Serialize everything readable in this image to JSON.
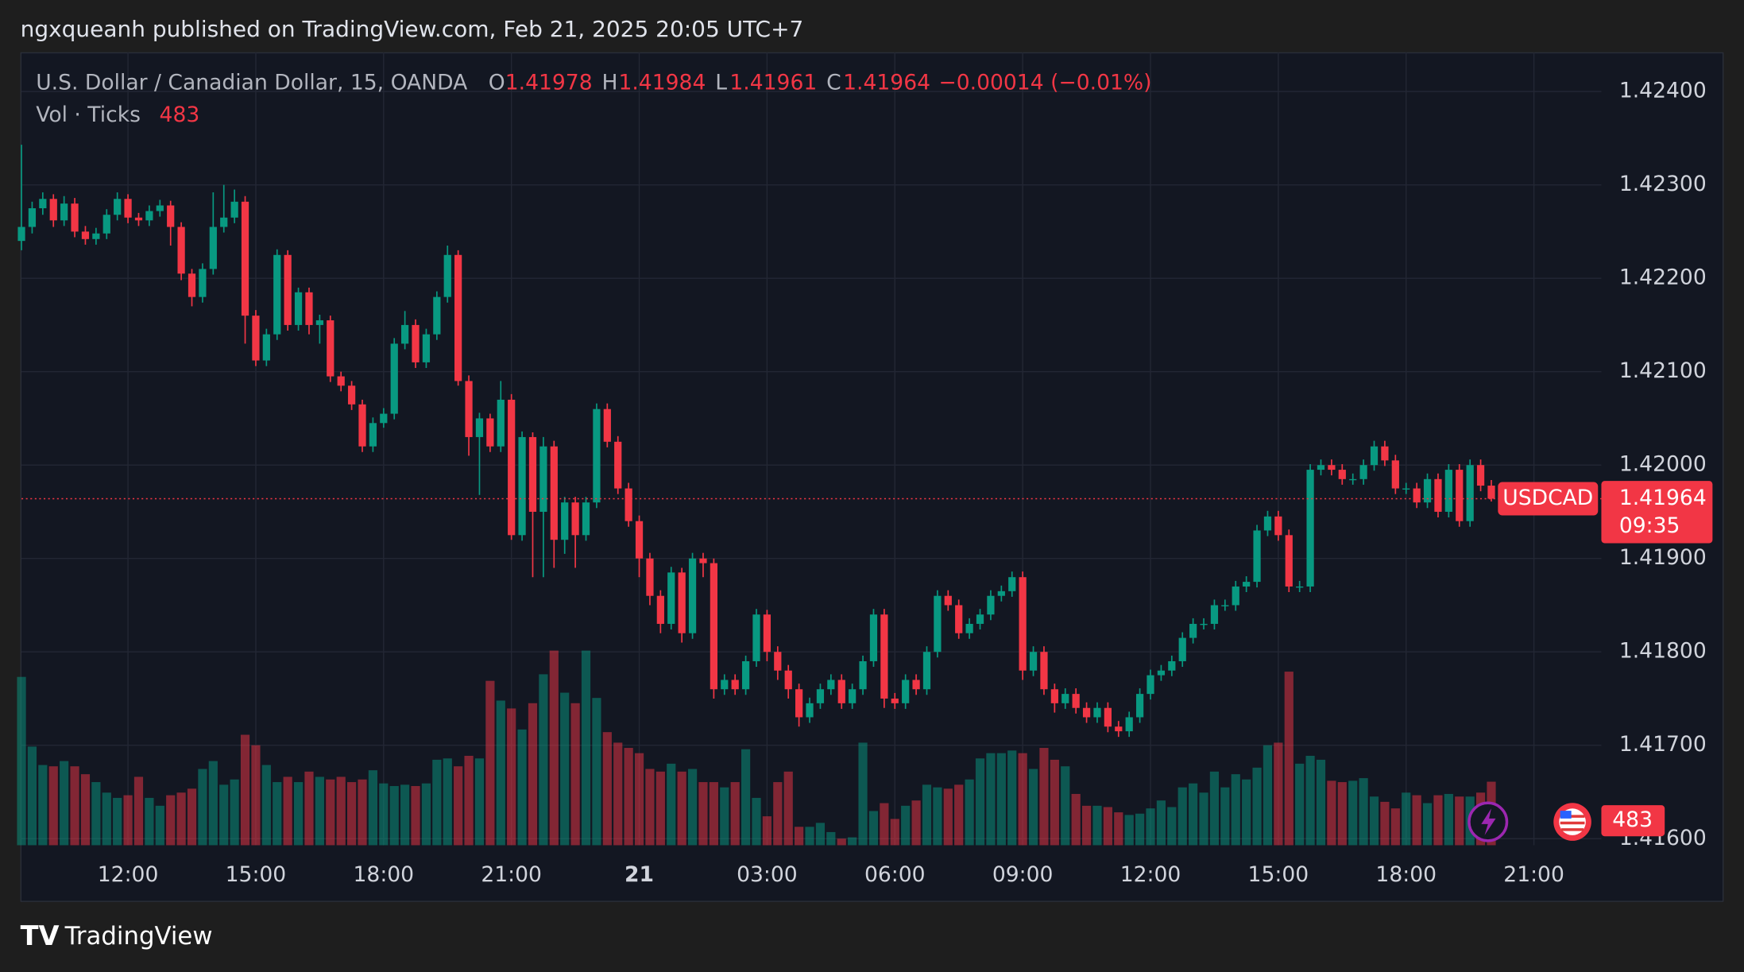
{
  "header": {
    "text": "ngxqueanh published on TradingView.com, Feb 21, 2025 20:05 UTC+7"
  },
  "chart_data": {
    "type": "candlestick",
    "symbol": "U.S. Dollar / Canadian Dollar, 15, OANDA",
    "ohlc_labels": [
      "O",
      "H",
      "L",
      "C"
    ],
    "change": "−0.00014 (−0.01%)",
    "volume_label": "Vol · Ticks",
    "ticker": "USDCAD",
    "countdown": "09:35",
    "up_color": "#089981",
    "down_color": "#f23645",
    "ylim": [
      1.41593,
      1.42442
    ],
    "yticks": [
      {
        "value": 1.424,
        "label": "1.42400"
      },
      {
        "value": 1.423,
        "label": "1.42300"
      },
      {
        "value": 1.422,
        "label": "1.42200"
      },
      {
        "value": 1.421,
        "label": "1.42100"
      },
      {
        "value": 1.42,
        "label": "1.42000"
      },
      {
        "value": 1.419,
        "label": "1.41900"
      },
      {
        "value": 1.418,
        "label": "1.41800"
      },
      {
        "value": 1.417,
        "label": "1.41700"
      },
      {
        "value": 1.416,
        "label": "1.41600"
      }
    ],
    "xticks": [
      {
        "value": 10,
        "label": "12:00"
      },
      {
        "value": 22,
        "label": "15:00"
      },
      {
        "value": 34,
        "label": "18:00"
      },
      {
        "value": 46,
        "label": "21:00"
      },
      {
        "value": 58,
        "label": "21"
      },
      {
        "value": 70,
        "label": "03:00"
      },
      {
        "value": 82,
        "label": "06:00"
      },
      {
        "value": 94,
        "label": "09:00"
      },
      {
        "value": 106,
        "label": "12:00"
      },
      {
        "value": 118,
        "label": "15:00"
      },
      {
        "value": 130,
        "label": "18:00"
      },
      {
        "value": 142,
        "label": "21:00"
      }
    ],
    "grid": true,
    "candles": [
      [
        1.4224,
        1.42343,
        1.4223,
        1.42255
      ],
      [
        1.42255,
        1.42282,
        1.42248,
        1.42275
      ],
      [
        1.42275,
        1.42292,
        1.42268,
        1.42285
      ],
      [
        1.42285,
        1.4229,
        1.42255,
        1.42262
      ],
      [
        1.42262,
        1.42288,
        1.42256,
        1.4228
      ],
      [
        1.4228,
        1.42286,
        1.42244,
        1.4225
      ],
      [
        1.4225,
        1.42256,
        1.42236,
        1.42242
      ],
      [
        1.42242,
        1.42254,
        1.42236,
        1.42248
      ],
      [
        1.42248,
        1.42274,
        1.42242,
        1.42268
      ],
      [
        1.42268,
        1.42292,
        1.42262,
        1.42285
      ],
      [
        1.42285,
        1.4229,
        1.42259,
        1.42265
      ],
      [
        1.42265,
        1.4227,
        1.42256,
        1.42262
      ],
      [
        1.42262,
        1.42278,
        1.42256,
        1.42272
      ],
      [
        1.42272,
        1.42284,
        1.42266,
        1.42278
      ],
      [
        1.42278,
        1.42283,
        1.42235,
        1.42255
      ],
      [
        1.42255,
        1.4226,
        1.42198,
        1.42205
      ],
      [
        1.42205,
        1.4221,
        1.4217,
        1.4218
      ],
      [
        1.4218,
        1.42216,
        1.42174,
        1.4221
      ],
      [
        1.4221,
        1.42292,
        1.42204,
        1.42255
      ],
      [
        1.42255,
        1.423,
        1.42249,
        1.42265
      ],
      [
        1.42265,
        1.42295,
        1.42259,
        1.42282
      ],
      [
        1.42282,
        1.42288,
        1.4213,
        1.4216
      ],
      [
        1.4216,
        1.42166,
        1.42106,
        1.42112
      ],
      [
        1.42112,
        1.42146,
        1.42106,
        1.4214
      ],
      [
        1.4214,
        1.42231,
        1.42134,
        1.42225
      ],
      [
        1.42225,
        1.4223,
        1.42144,
        1.4215
      ],
      [
        1.4215,
        1.4219,
        1.42144,
        1.42185
      ],
      [
        1.42185,
        1.4219,
        1.4214,
        1.4215
      ],
      [
        1.4215,
        1.42161,
        1.4213,
        1.42155
      ],
      [
        1.42155,
        1.4216,
        1.42089,
        1.42095
      ],
      [
        1.42095,
        1.421,
        1.42079,
        1.42085
      ],
      [
        1.42085,
        1.4209,
        1.42059,
        1.42065
      ],
      [
        1.42065,
        1.4207,
        1.42014,
        1.4202
      ],
      [
        1.4202,
        1.42051,
        1.42014,
        1.42045
      ],
      [
        1.42045,
        1.42061,
        1.4204,
        1.42055
      ],
      [
        1.42055,
        1.42136,
        1.42049,
        1.4213
      ],
      [
        1.4213,
        1.42165,
        1.42124,
        1.4215
      ],
      [
        1.4215,
        1.42156,
        1.42104,
        1.4211
      ],
      [
        1.4211,
        1.42146,
        1.42104,
        1.4214
      ],
      [
        1.4214,
        1.42186,
        1.42134,
        1.4218
      ],
      [
        1.4218,
        1.42235,
        1.42174,
        1.42225
      ],
      [
        1.42225,
        1.4223,
        1.42085,
        1.4209
      ],
      [
        1.4209,
        1.42096,
        1.4201,
        1.4203
      ],
      [
        1.4203,
        1.42056,
        1.41968,
        1.4205
      ],
      [
        1.4205,
        1.42055,
        1.42014,
        1.4202
      ],
      [
        1.4202,
        1.4209,
        1.42014,
        1.4207
      ],
      [
        1.4207,
        1.42076,
        1.4192,
        1.41925
      ],
      [
        1.41925,
        1.42036,
        1.41919,
        1.4203
      ],
      [
        1.4203,
        1.42035,
        1.4188,
        1.4195
      ],
      [
        1.4195,
        1.4203,
        1.4188,
        1.4202
      ],
      [
        1.4202,
        1.42026,
        1.4189,
        1.4192
      ],
      [
        1.4192,
        1.41966,
        1.41905,
        1.4196
      ],
      [
        1.4196,
        1.41966,
        1.4189,
        1.41925
      ],
      [
        1.41925,
        1.41966,
        1.41919,
        1.4196
      ],
      [
        1.4196,
        1.42066,
        1.41954,
        1.4206
      ],
      [
        1.4206,
        1.42066,
        1.42019,
        1.42025
      ],
      [
        1.42025,
        1.42031,
        1.41969,
        1.41975
      ],
      [
        1.41975,
        1.41981,
        1.41934,
        1.4194
      ],
      [
        1.4194,
        1.41946,
        1.4188,
        1.419
      ],
      [
        1.419,
        1.41906,
        1.4185,
        1.4186
      ],
      [
        1.4186,
        1.41866,
        1.4182,
        1.4183
      ],
      [
        1.4183,
        1.41891,
        1.41824,
        1.41885
      ],
      [
        1.41885,
        1.4189,
        1.4181,
        1.4182
      ],
      [
        1.4182,
        1.41906,
        1.41814,
        1.419
      ],
      [
        1.419,
        1.41906,
        1.4188,
        1.41895
      ],
      [
        1.41895,
        1.419,
        1.4175,
        1.4176
      ],
      [
        1.4176,
        1.41776,
        1.41754,
        1.4177
      ],
      [
        1.4177,
        1.41776,
        1.41754,
        1.4176
      ],
      [
        1.4176,
        1.41796,
        1.41754,
        1.4179
      ],
      [
        1.4179,
        1.41846,
        1.41784,
        1.4184
      ],
      [
        1.4184,
        1.41845,
        1.4179,
        1.418
      ],
      [
        1.418,
        1.41806,
        1.4177,
        1.4178
      ],
      [
        1.4178,
        1.41786,
        1.4175,
        1.4176
      ],
      [
        1.4176,
        1.41766,
        1.4172,
        1.4173
      ],
      [
        1.4173,
        1.41751,
        1.41724,
        1.41745
      ],
      [
        1.41745,
        1.41766,
        1.41739,
        1.4176
      ],
      [
        1.4176,
        1.41776,
        1.41754,
        1.4177
      ],
      [
        1.4177,
        1.41776,
        1.41739,
        1.41745
      ],
      [
        1.41745,
        1.41766,
        1.41739,
        1.4176
      ],
      [
        1.4176,
        1.41796,
        1.41754,
        1.4179
      ],
      [
        1.4179,
        1.41846,
        1.41784,
        1.4184
      ],
      [
        1.4184,
        1.41846,
        1.4174,
        1.4175
      ],
      [
        1.4175,
        1.41756,
        1.41739,
        1.41745
      ],
      [
        1.41745,
        1.41776,
        1.41739,
        1.4177
      ],
      [
        1.4177,
        1.41776,
        1.41754,
        1.4176
      ],
      [
        1.4176,
        1.41806,
        1.41754,
        1.418
      ],
      [
        1.418,
        1.41866,
        1.41794,
        1.4186
      ],
      [
        1.4186,
        1.41866,
        1.41844,
        1.4185
      ],
      [
        1.4185,
        1.41856,
        1.41814,
        1.4182
      ],
      [
        1.4182,
        1.41836,
        1.41814,
        1.4183
      ],
      [
        1.4183,
        1.41846,
        1.41824,
        1.4184
      ],
      [
        1.4184,
        1.41866,
        1.41834,
        1.4186
      ],
      [
        1.4186,
        1.41871,
        1.41854,
        1.41865
      ],
      [
        1.41865,
        1.41886,
        1.41859,
        1.4188
      ],
      [
        1.4188,
        1.41886,
        1.4177,
        1.4178
      ],
      [
        1.4178,
        1.41806,
        1.41774,
        1.418
      ],
      [
        1.418,
        1.41806,
        1.41754,
        1.4176
      ],
      [
        1.4176,
        1.41766,
        1.41735,
        1.41745
      ],
      [
        1.41745,
        1.41761,
        1.41739,
        1.41755
      ],
      [
        1.41755,
        1.41761,
        1.41734,
        1.4174
      ],
      [
        1.4174,
        1.41746,
        1.41724,
        1.4173
      ],
      [
        1.4173,
        1.41746,
        1.41724,
        1.4174
      ],
      [
        1.4174,
        1.41746,
        1.41714,
        1.4172
      ],
      [
        1.4172,
        1.41726,
        1.41709,
        1.41715
      ],
      [
        1.41715,
        1.41736,
        1.41709,
        1.4173
      ],
      [
        1.4173,
        1.41761,
        1.41724,
        1.41755
      ],
      [
        1.41755,
        1.41781,
        1.41749,
        1.41775
      ],
      [
        1.41775,
        1.41786,
        1.41769,
        1.4178
      ],
      [
        1.4178,
        1.41796,
        1.41774,
        1.4179
      ],
      [
        1.4179,
        1.41821,
        1.41784,
        1.41815
      ],
      [
        1.41815,
        1.41836,
        1.41809,
        1.4183
      ],
      [
        1.4183,
        1.41836,
        1.41824,
        1.4183
      ],
      [
        1.4183,
        1.41856,
        1.41824,
        1.4185
      ],
      [
        1.4185,
        1.41856,
        1.41844,
        1.4185
      ],
      [
        1.4185,
        1.41876,
        1.41844,
        1.4187
      ],
      [
        1.4187,
        1.41881,
        1.41864,
        1.41875
      ],
      [
        1.41875,
        1.41936,
        1.41869,
        1.4193
      ],
      [
        1.4193,
        1.41951,
        1.41924,
        1.41945
      ],
      [
        1.41945,
        1.41951,
        1.41919,
        1.41925
      ],
      [
        1.41925,
        1.41931,
        1.41864,
        1.4187
      ],
      [
        1.4187,
        1.41876,
        1.41864,
        1.4187
      ],
      [
        1.4187,
        1.42001,
        1.41864,
        1.41995
      ],
      [
        1.41995,
        1.42006,
        1.41989,
        1.42
      ],
      [
        1.42,
        1.42006,
        1.41989,
        1.41995
      ],
      [
        1.41995,
        1.42001,
        1.41979,
        1.41985
      ],
      [
        1.41985,
        1.41991,
        1.41979,
        1.41985
      ],
      [
        1.41985,
        1.42006,
        1.41979,
        1.42
      ],
      [
        1.42,
        1.42026,
        1.41994,
        1.4202
      ],
      [
        1.4202,
        1.42026,
        1.41999,
        1.42005
      ],
      [
        1.42005,
        1.42011,
        1.41969,
        1.41975
      ],
      [
        1.41975,
        1.41981,
        1.41969,
        1.41975
      ],
      [
        1.41975,
        1.41981,
        1.41954,
        1.4196
      ],
      [
        1.4196,
        1.41991,
        1.41954,
        1.41985
      ],
      [
        1.41985,
        1.41991,
        1.41944,
        1.4195
      ],
      [
        1.4195,
        1.42001,
        1.41944,
        1.41995
      ],
      [
        1.41995,
        1.42001,
        1.41934,
        1.4194
      ],
      [
        1.4194,
        1.42006,
        1.41934,
        1.42
      ],
      [
        1.42,
        1.42006,
        1.41972,
        1.41978
      ],
      [
        1.41978,
        1.41984,
        1.41961,
        1.41964
      ]
    ],
    "volume": [
      1280,
      750,
      610,
      600,
      640,
      600,
      540,
      480,
      400,
      360,
      380,
      520,
      360,
      300,
      380,
      400,
      430,
      580,
      640,
      460,
      500,
      840,
      760,
      610,
      480,
      520,
      480,
      560,
      520,
      500,
      520,
      480,
      500,
      570,
      470,
      450,
      460,
      450,
      470,
      650,
      660,
      600,
      680,
      660,
      1250,
      1100,
      1040,
      880,
      1080,
      1300,
      1480,
      1160,
      1080,
      1480,
      1120,
      860,
      780,
      740,
      700,
      580,
      560,
      620,
      560,
      580,
      480,
      480,
      440,
      480,
      730,
      360,
      220,
      480,
      560,
      140,
      140,
      170,
      100,
      50,
      60,
      780,
      260,
      320,
      200,
      300,
      340,
      460,
      440,
      430,
      460,
      500,
      660,
      700,
      700,
      720,
      700,
      580,
      740,
      650,
      600,
      390,
      300,
      300,
      290,
      250,
      230,
      240,
      280,
      340,
      290,
      440,
      470,
      400,
      560,
      440,
      540,
      500,
      590,
      760,
      780,
      1320,
      620,
      680,
      650,
      490,
      480,
      490,
      510,
      370,
      330,
      280,
      400,
      380,
      320,
      380,
      390,
      370,
      370,
      400,
      483
    ]
  },
  "footer": {
    "logo": "TradingView"
  }
}
